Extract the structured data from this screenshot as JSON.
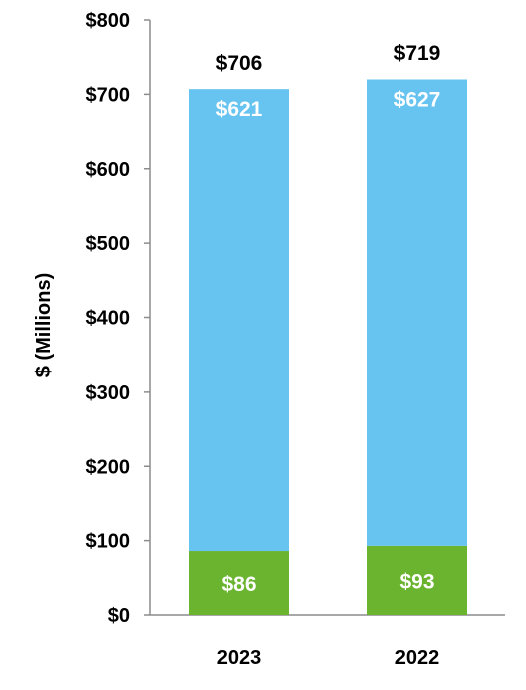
{
  "chart_data": {
    "type": "bar",
    "stacked": true,
    "categories": [
      "2023",
      "2022"
    ],
    "series": [
      {
        "values": [
          86,
          93
        ],
        "labels": [
          "$86",
          "$93"
        ],
        "color": "#6ab42f"
      },
      {
        "values": [
          621,
          627
        ],
        "labels": [
          "$621",
          "$627"
        ],
        "color": "#67c3ef"
      }
    ],
    "totals": [
      706,
      719
    ],
    "total_labels": [
      "$706",
      "$719"
    ],
    "ylabel": "$ (Millions)",
    "ylim": [
      0,
      800
    ],
    "yticks": [
      0,
      100,
      200,
      300,
      400,
      500,
      600,
      700,
      800
    ],
    "ytick_labels": [
      "$0",
      "$100",
      "$200",
      "$300",
      "$400",
      "$500",
      "$600",
      "$700",
      "$800"
    ],
    "grid": false,
    "legend": "none"
  }
}
